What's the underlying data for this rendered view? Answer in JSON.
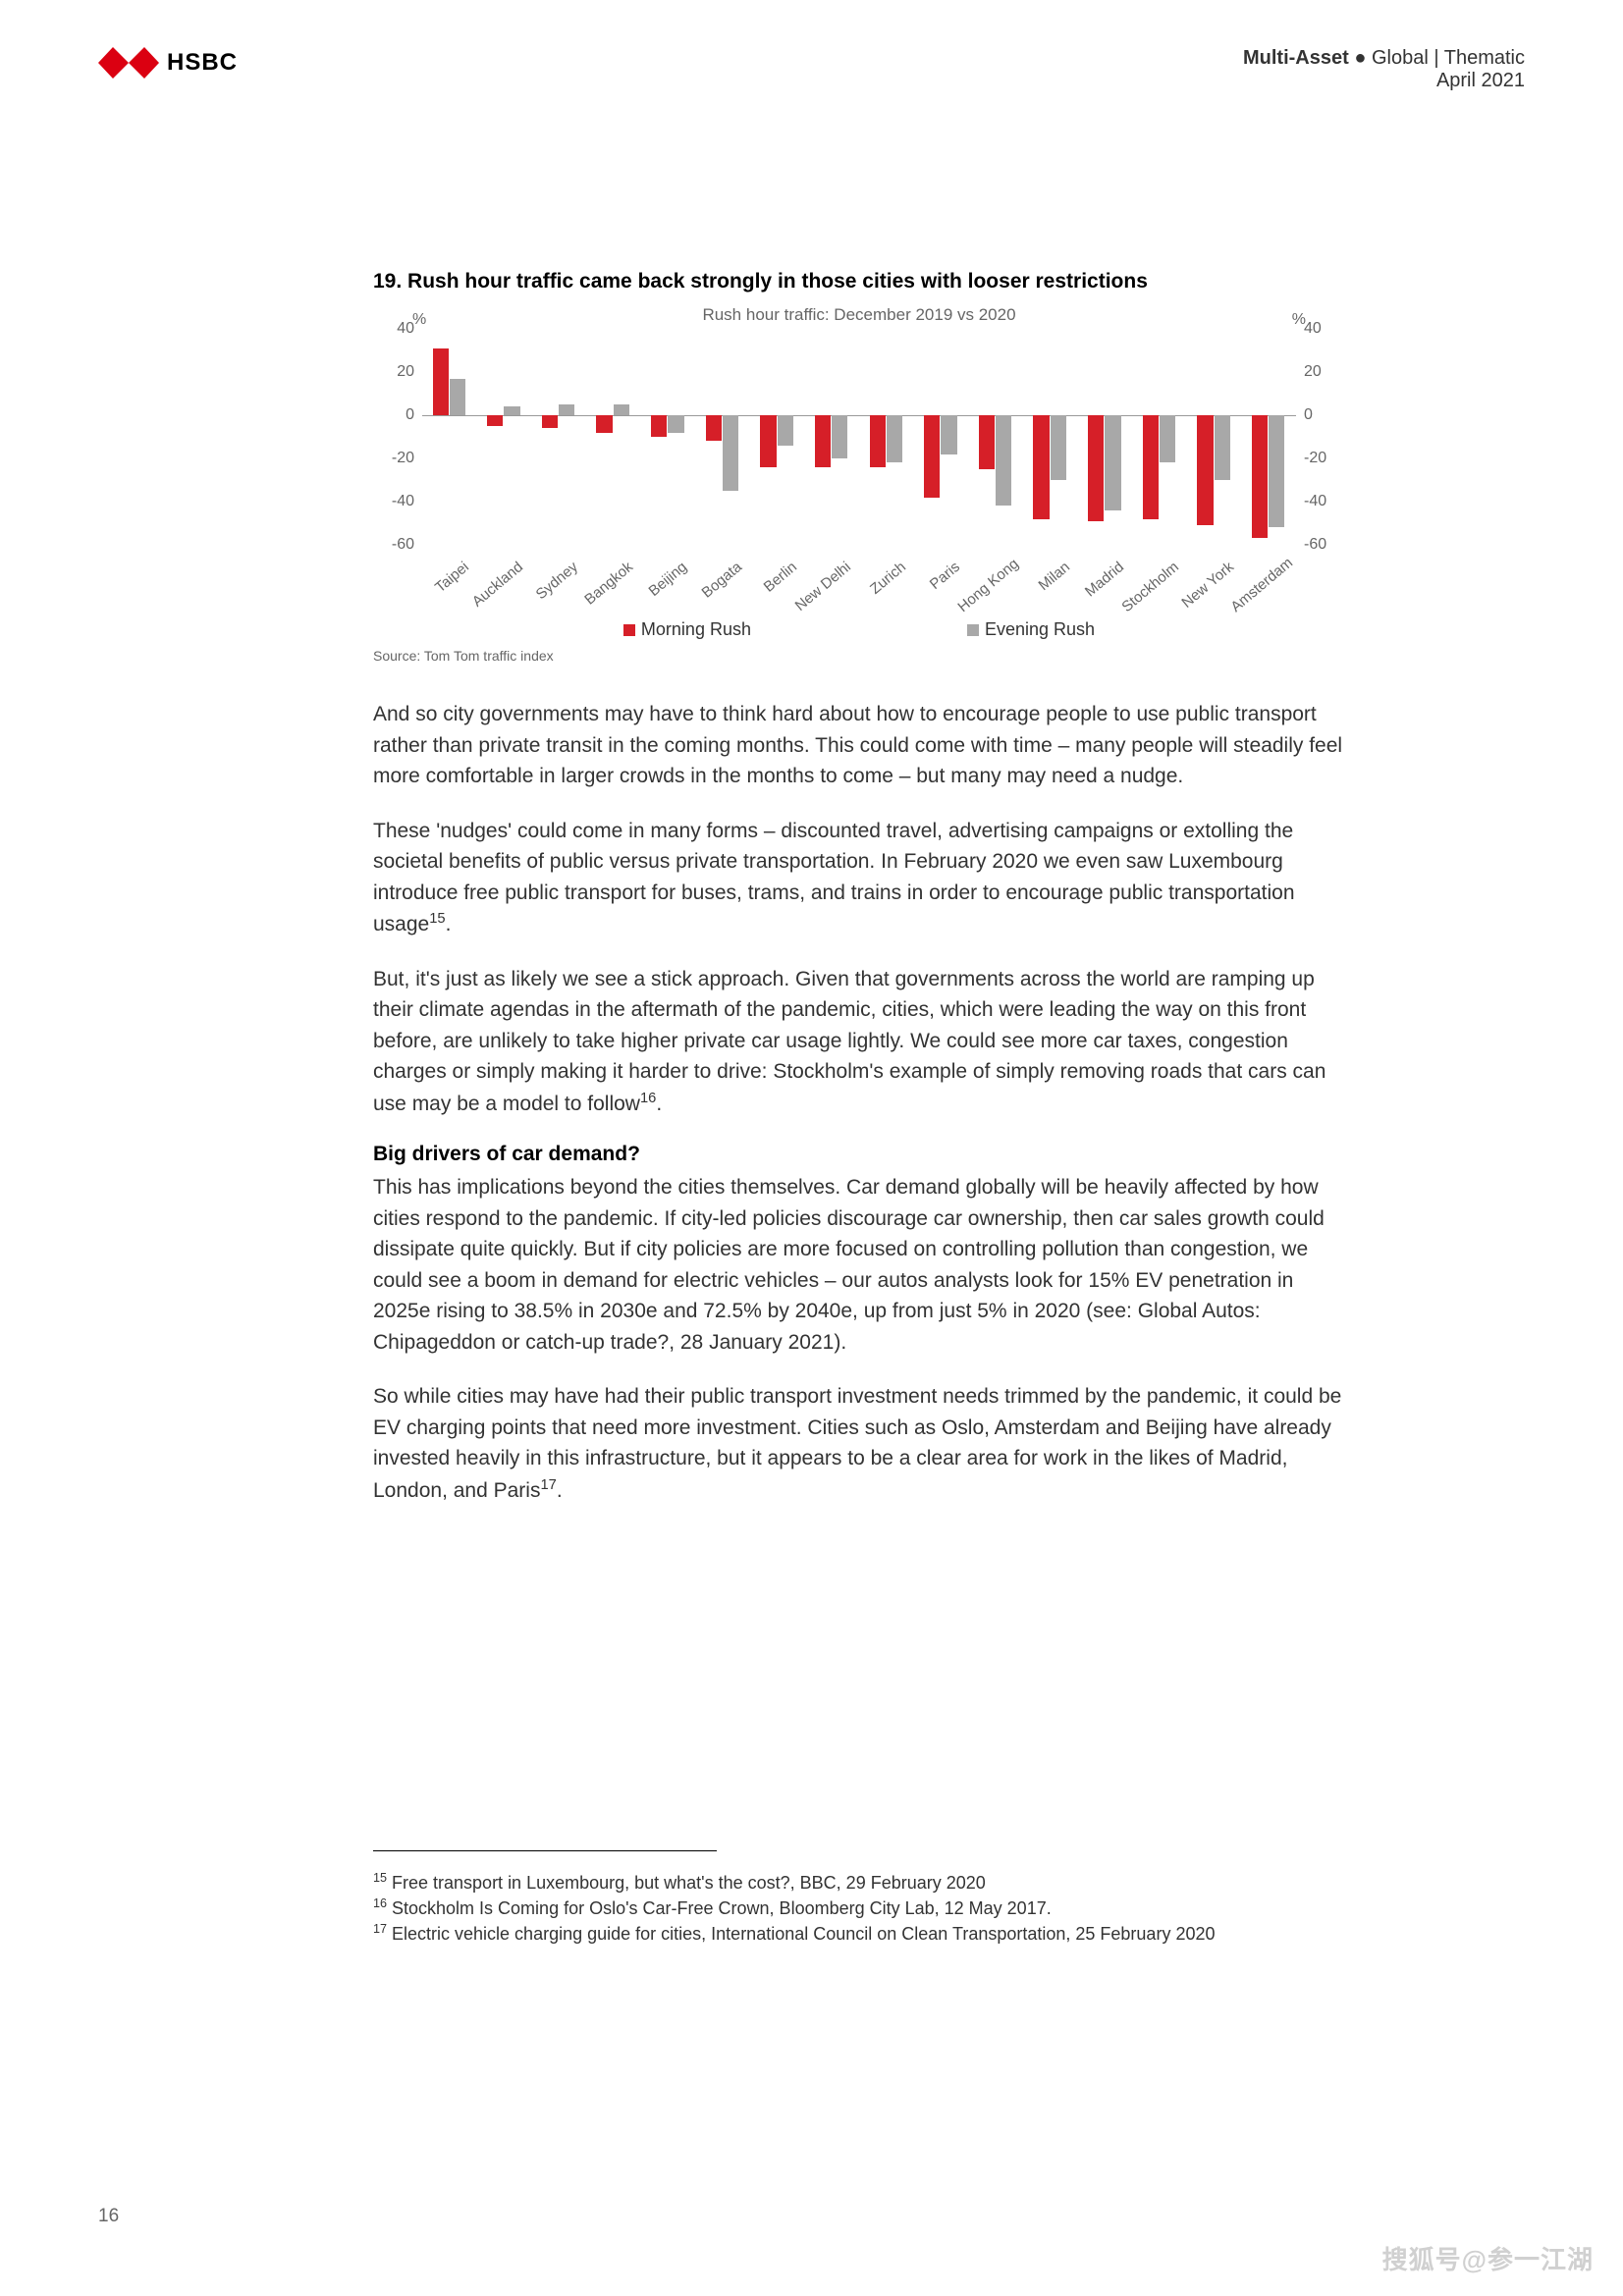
{
  "header": {
    "brand": "HSBC",
    "line1_bold": "Multi-Asset",
    "line1_rest": "● Global | Thematic",
    "line2": "April 2021"
  },
  "chart": {
    "type": "bar",
    "title": "19. Rush hour traffic came back strongly in those cities with looser restrictions",
    "subtitle": "Rush hour traffic: December 2019 vs 2020",
    "y_unit": "%",
    "ylim": [
      -60,
      40
    ],
    "ytick_step": 20,
    "yticks": [
      40,
      20,
      0,
      -20,
      -40,
      -60
    ],
    "categories": [
      "Taipei",
      "Auckland",
      "Sydney",
      "Bangkok",
      "Beijing",
      "Bogata",
      "Berlin",
      "New Delhi",
      "Zurich",
      "Paris",
      "Hong Kong",
      "Milan",
      "Madrid",
      "Stockholm",
      "New York",
      "Amsterdam"
    ],
    "series": [
      {
        "name": "Morning Rush",
        "color": "#d61f28",
        "values": [
          31,
          -5,
          -6,
          -8,
          -10,
          -12,
          -24,
          -24,
          -24,
          -38,
          -25,
          -48,
          -49,
          -48,
          -51,
          -57
        ]
      },
      {
        "name": "Evening Rush",
        "color": "#a8a8a8",
        "values": [
          17,
          4,
          5,
          5,
          -8,
          -35,
          -14,
          -20,
          -22,
          -18,
          -42,
          -30,
          -44,
          -22,
          -30,
          -52
        ]
      }
    ],
    "background_color": "#ffffff",
    "bar_group_width": 0.62,
    "source": "Source: Tom Tom traffic index"
  },
  "body": {
    "p1": "And so city governments may have to think hard about how to encourage people to use public transport rather than private transit in the coming months. This could come with time – many people will steadily feel more comfortable in larger crowds in the months to come – but many may need a nudge.",
    "p2_a": "These 'nudges' could come in many forms – discounted travel, advertising campaigns or extolling the societal benefits of public versus private transportation. In February 2020 we even saw Luxembourg introduce free public transport for buses, trams, and trains in order to encourage public transportation usage",
    "p2_sup": "15",
    "p2_b": ".",
    "p3_a": "But, it's just as likely we see a stick approach. Given that governments across the world are ramping up their climate agendas in the aftermath of the pandemic, cities, which were leading the way on this front before, are unlikely to take higher private car usage lightly. We could see more car taxes, congestion charges or simply making it harder to drive: Stockholm's example of simply removing roads that cars can use may be a model to follow",
    "p3_sup": "16",
    "p3_b": ".",
    "h1": "Big drivers of car demand?",
    "p4": "This has implications beyond the cities themselves. Car demand globally will be heavily affected by how cities respond to the pandemic. If city-led policies discourage car ownership, then car sales growth could dissipate quite quickly. But if city policies are more focused on controlling pollution than congestion, we could see a boom in demand for electric vehicles – our autos analysts look for 15% EV penetration in 2025e rising to 38.5% in 2030e and 72.5% by 2040e, up from just 5% in 2020 (see: Global Autos: Chipageddon or catch-up trade?, 28 January 2021).",
    "p5_a": "So while cities may have had their public transport investment needs trimmed by the pandemic, it could be EV charging points that need more investment. Cities such as Oslo, Amsterdam and Beijing have already invested heavily in this infrastructure, but it appears to be a clear area for work in the likes of Madrid, London, and Paris",
    "p5_sup": "17",
    "p5_b": "."
  },
  "footnotes": {
    "f15_sup": "15",
    "f15": " Free transport in Luxembourg, but what's the cost?, BBC, 29 February 2020",
    "f16_sup": "16",
    "f16": " Stockholm Is Coming for Oslo's Car-Free Crown, Bloomberg City Lab, 12 May 2017.",
    "f17_sup": "17",
    "f17": " Electric vehicle charging guide for cities, International Council on Clean Transportation, 25 February 2020"
  },
  "page_number": "16",
  "watermark": "搜狐号@参一江湖"
}
